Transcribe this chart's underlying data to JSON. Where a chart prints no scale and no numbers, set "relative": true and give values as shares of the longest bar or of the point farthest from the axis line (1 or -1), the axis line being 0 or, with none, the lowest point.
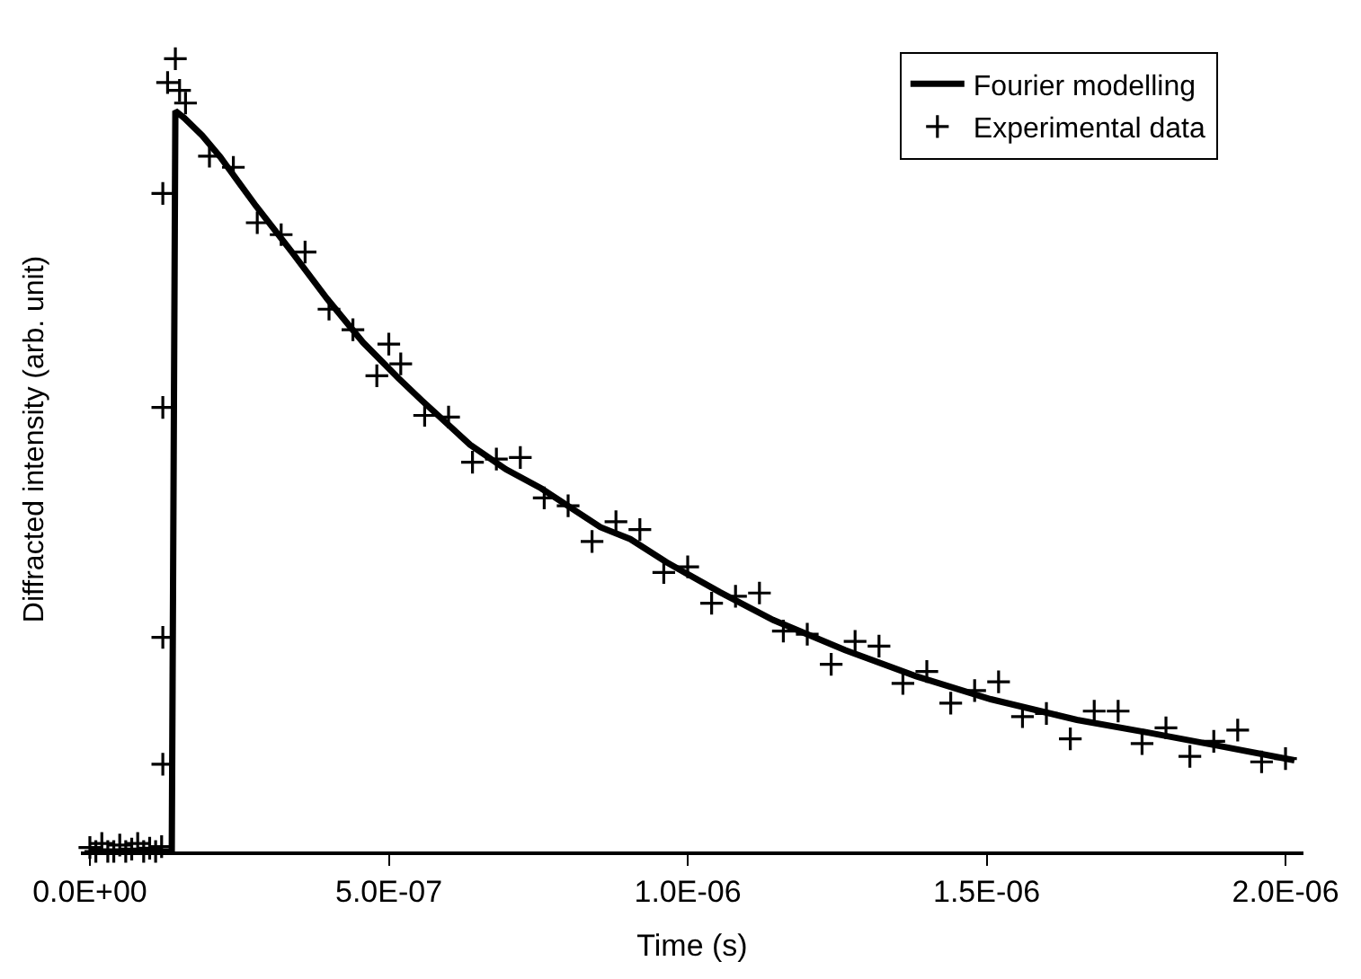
{
  "chart_data": {
    "type": "line",
    "relative": true,
    "xlabel": "Time (s)",
    "ylabel": "Diffracted intensity (arb. unit)",
    "xlim": [
      -1.5e-08,
      2.03e-06
    ],
    "xticks": [
      {
        "value": 0,
        "label": "0.0E+00"
      },
      {
        "value": 5e-07,
        "label": "5.0E-07"
      },
      {
        "value": 1e-06,
        "label": "1.0E-06"
      },
      {
        "value": 1.5e-06,
        "label": "1.5E-06"
      },
      {
        "value": 2e-06,
        "label": "2.0E-06"
      }
    ],
    "tick_labels": "x",
    "legend": "top right",
    "series": [
      {
        "name": "Fourier modelling",
        "marker": "none",
        "line_style": "solid",
        "color": "#000000",
        "x": [
          0,
          1.37e-07,
          1.43e-07,
          1.58e-07,
          1.88e-07,
          2.18e-07,
          2.48e-07,
          2.78e-07,
          3.37e-07,
          3.97e-07,
          4.57e-07,
          5.16e-07,
          5.55e-07,
          6.36e-07,
          6.96e-07,
          7.55e-07,
          8.54e-07,
          9.04e-07,
          9.64e-07,
          1.054e-06,
          1.143e-06,
          1.263e-06,
          1.382e-06,
          1.507e-06,
          1.651e-06,
          1.77e-06,
          1.89e-06,
          2.015e-06
        ],
        "values": [
          0,
          0,
          0.934,
          0.925,
          0.903,
          0.876,
          0.845,
          0.814,
          0.757,
          0.697,
          0.642,
          0.597,
          0.569,
          0.513,
          0.482,
          0.458,
          0.409,
          0.394,
          0.365,
          0.327,
          0.292,
          0.254,
          0.221,
          0.192,
          0.166,
          0.15,
          0.133,
          0.115
        ]
      },
      {
        "name": "Experimental data",
        "type": "scatter",
        "marker": "cross",
        "color": "#000000",
        "x": [
          0,
          1e-08,
          2e-08,
          3e-08,
          4e-08,
          5e-08,
          6e-08,
          7e-08,
          8e-08,
          9e-08,
          1e-07,
          1.1e-07,
          1.2e-07,
          1.22e-07,
          1.22e-07,
          1.22e-07,
          1.22e-07,
          1.3e-07,
          1.43e-07,
          1.5e-07,
          1.6e-07,
          2e-07,
          2.4e-07,
          2.8e-07,
          3.2e-07,
          3.6e-07,
          4e-07,
          4.4e-07,
          4.8e-07,
          5e-07,
          5.2e-07,
          5.6e-07,
          6e-07,
          6.4e-07,
          6.8e-07,
          7.2e-07,
          7.6e-07,
          8e-07,
          8.4e-07,
          8.8e-07,
          9.2e-07,
          9.6e-07,
          1e-06,
          1.04e-06,
          1.08e-06,
          1.12e-06,
          1.16e-06,
          1.2e-06,
          1.24e-06,
          1.28e-06,
          1.32e-06,
          1.36e-06,
          1.4e-06,
          1.44e-06,
          1.48e-06,
          1.52e-06,
          1.56e-06,
          1.6e-06,
          1.64e-06,
          1.68e-06,
          1.72e-06,
          1.76e-06,
          1.8e-06,
          1.84e-06,
          1.88e-06,
          1.92e-06,
          1.96e-06,
          2e-06
        ],
        "values": [
          0.005,
          0,
          0.01,
          0,
          0,
          0.008,
          0,
          0.003,
          0.01,
          0,
          0.004,
          0,
          0.006,
          0.11,
          0.27,
          0.56,
          0.83,
          0.97,
          1.0,
          0.96,
          0.944,
          0.877,
          0.863,
          0.793,
          0.778,
          0.756,
          0.684,
          0.658,
          0.6,
          0.64,
          0.615,
          0.55,
          0.548,
          0.491,
          0.495,
          0.497,
          0.446,
          0.436,
          0.391,
          0.416,
          0.406,
          0.352,
          0.359,
          0.313,
          0.322,
          0.326,
          0.278,
          0.274,
          0.236,
          0.265,
          0.259,
          0.212,
          0.227,
          0.187,
          0.203,
          0.214,
          0.17,
          0.174,
          0.142,
          0.177,
          0.177,
          0.136,
          0.156,
          0.12,
          0.139,
          0.153,
          0.113,
          0.117
        ]
      }
    ]
  }
}
